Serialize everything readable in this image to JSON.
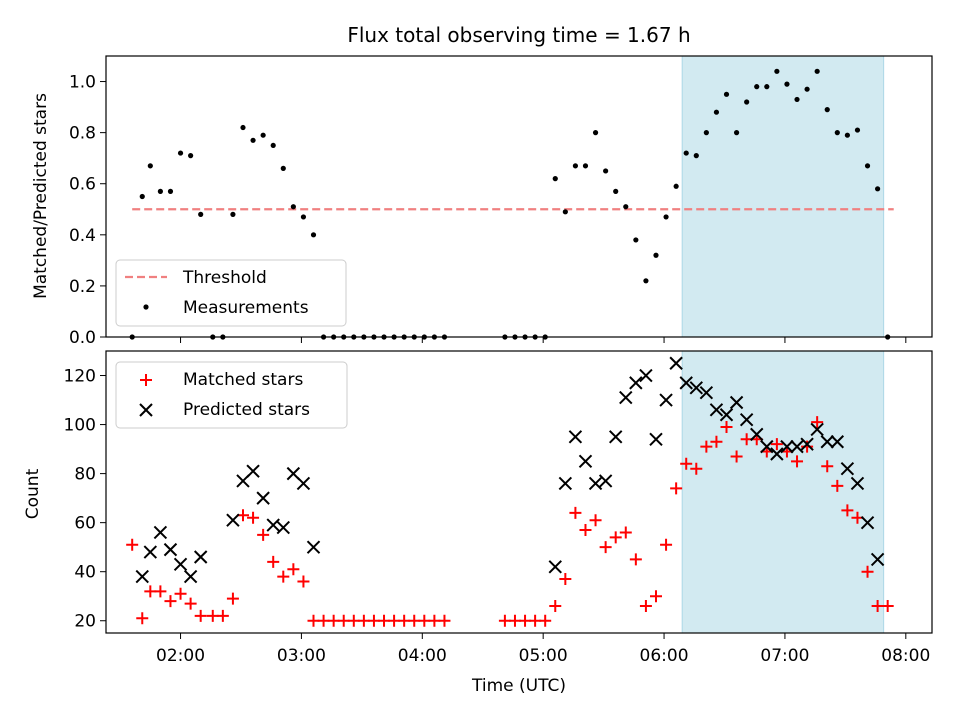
{
  "chart_data": [
    {
      "type": "scatter",
      "title": "Flux total observing time = 1.67 h",
      "xlabel": "",
      "ylabel": "Matched/Predicted stars",
      "ylim": [
        0,
        1.1
      ],
      "yticks": [
        "0.0",
        "0.2",
        "0.4",
        "0.6",
        "0.8",
        "1.0"
      ],
      "xlim": [
        "01:23",
        "08:13"
      ],
      "x_tick_values": [
        "02:00",
        "03:00",
        "04:00",
        "05:00",
        "06:00",
        "07:00",
        "08:00"
      ],
      "shaded_region": {
        "start": "06:09",
        "end": "07:49",
        "color": "#add8e6"
      },
      "legend_position": "lower-left",
      "threshold": {
        "name": "Threshold",
        "value": 0.5,
        "x_start": "01:36",
        "x_end": "07:54",
        "color": "#f08080",
        "style": "dashed"
      },
      "series": [
        {
          "name": "Measurements",
          "color": "#000000",
          "marker": "dot",
          "points": [
            [
              "01:36",
              0.0
            ],
            [
              "01:41",
              0.55
            ],
            [
              "01:45",
              0.67
            ],
            [
              "01:50",
              0.57
            ],
            [
              "01:55",
              0.57
            ],
            [
              "02:00",
              0.72
            ],
            [
              "02:05",
              0.71
            ],
            [
              "02:10",
              0.48
            ],
            [
              "02:16",
              0.0
            ],
            [
              "02:21",
              0.0
            ],
            [
              "02:26",
              0.48
            ],
            [
              "02:31",
              0.82
            ],
            [
              "02:36",
              0.77
            ],
            [
              "02:41",
              0.79
            ],
            [
              "02:46",
              0.75
            ],
            [
              "02:51",
              0.66
            ],
            [
              "02:56",
              0.51
            ],
            [
              "03:01",
              0.47
            ],
            [
              "03:06",
              0.4
            ],
            [
              "03:11",
              0.0
            ],
            [
              "03:16",
              0.0
            ],
            [
              "03:21",
              0.0
            ],
            [
              "03:26",
              0.0
            ],
            [
              "03:31",
              0.0
            ],
            [
              "03:36",
              0.0
            ],
            [
              "03:41",
              0.0
            ],
            [
              "03:46",
              0.0
            ],
            [
              "03:51",
              0.0
            ],
            [
              "03:56",
              0.0
            ],
            [
              "04:01",
              0.0
            ],
            [
              "04:06",
              0.0
            ],
            [
              "04:11",
              0.0
            ],
            [
              "04:41",
              0.0
            ],
            [
              "04:46",
              0.0
            ],
            [
              "04:51",
              0.0
            ],
            [
              "04:56",
              0.0
            ],
            [
              "05:01",
              0.0
            ],
            [
              "05:06",
              0.62
            ],
            [
              "05:11",
              0.49
            ],
            [
              "05:16",
              0.67
            ],
            [
              "05:21",
              0.67
            ],
            [
              "05:26",
              0.8
            ],
            [
              "05:31",
              0.65
            ],
            [
              "05:36",
              0.57
            ],
            [
              "05:41",
              0.51
            ],
            [
              "05:46",
              0.38
            ],
            [
              "05:51",
              0.22
            ],
            [
              "05:56",
              0.32
            ],
            [
              "06:01",
              0.47
            ],
            [
              "06:06",
              0.59
            ],
            [
              "06:11",
              0.72
            ],
            [
              "06:16",
              0.71
            ],
            [
              "06:21",
              0.8
            ],
            [
              "06:26",
              0.88
            ],
            [
              "06:31",
              0.95
            ],
            [
              "06:36",
              0.8
            ],
            [
              "06:41",
              0.92
            ],
            [
              "06:46",
              0.98
            ],
            [
              "06:51",
              0.98
            ],
            [
              "06:56",
              1.04
            ],
            [
              "07:01",
              0.99
            ],
            [
              "07:06",
              0.93
            ],
            [
              "07:11",
              0.97
            ],
            [
              "07:16",
              1.04
            ],
            [
              "07:21",
              0.89
            ],
            [
              "07:26",
              0.8
            ],
            [
              "07:31",
              0.79
            ],
            [
              "07:36",
              0.81
            ],
            [
              "07:41",
              0.67
            ],
            [
              "07:46",
              0.58
            ],
            [
              "07:51",
              0.0
            ]
          ]
        }
      ]
    },
    {
      "type": "scatter",
      "title": "",
      "xlabel": "Time (UTC)",
      "ylabel": "Count",
      "ylim": [
        15,
        130
      ],
      "yticks": [
        "20",
        "40",
        "60",
        "80",
        "100",
        "120"
      ],
      "xlim": [
        "01:23",
        "08:13"
      ],
      "x_tick_values": [
        "02:00",
        "03:00",
        "04:00",
        "05:00",
        "06:00",
        "07:00",
        "08:00"
      ],
      "x_tick_labels": [
        "02:00",
        "03:00",
        "04:00",
        "05:00",
        "06:00",
        "07:00",
        "08:00"
      ],
      "shaded_region": {
        "start": "06:09",
        "end": "07:49",
        "color": "#add8e6"
      },
      "legend_position": "top-left",
      "series": [
        {
          "name": "Matched stars",
          "color": "#ff0000",
          "marker": "plus",
          "points": [
            [
              "01:36",
              51
            ],
            [
              "01:41",
              21
            ],
            [
              "01:45",
              32
            ],
            [
              "01:50",
              32
            ],
            [
              "01:55",
              28
            ],
            [
              "02:00",
              31
            ],
            [
              "02:05",
              27
            ],
            [
              "02:10",
              22
            ],
            [
              "02:16",
              22
            ],
            [
              "02:21",
              22
            ],
            [
              "02:26",
              29
            ],
            [
              "02:31",
              63
            ],
            [
              "02:36",
              62
            ],
            [
              "02:41",
              55
            ],
            [
              "02:46",
              44
            ],
            [
              "02:51",
              38
            ],
            [
              "02:56",
              41
            ],
            [
              "03:01",
              36
            ],
            [
              "03:06",
              20
            ],
            [
              "03:11",
              20
            ],
            [
              "03:16",
              20
            ],
            [
              "03:21",
              20
            ],
            [
              "03:26",
              20
            ],
            [
              "03:31",
              20
            ],
            [
              "03:36",
              20
            ],
            [
              "03:41",
              20
            ],
            [
              "03:46",
              20
            ],
            [
              "03:51",
              20
            ],
            [
              "03:56",
              20
            ],
            [
              "04:01",
              20
            ],
            [
              "04:06",
              20
            ],
            [
              "04:11",
              20
            ],
            [
              "04:41",
              20
            ],
            [
              "04:46",
              20
            ],
            [
              "04:51",
              20
            ],
            [
              "04:56",
              20
            ],
            [
              "05:01",
              20
            ],
            [
              "05:06",
              26
            ],
            [
              "05:11",
              37
            ],
            [
              "05:16",
              64
            ],
            [
              "05:21",
              57
            ],
            [
              "05:26",
              61
            ],
            [
              "05:31",
              50
            ],
            [
              "05:36",
              54
            ],
            [
              "05:41",
              56
            ],
            [
              "05:46",
              45
            ],
            [
              "05:51",
              26
            ],
            [
              "05:56",
              30
            ],
            [
              "06:01",
              51
            ],
            [
              "06:06",
              74
            ],
            [
              "06:11",
              84
            ],
            [
              "06:16",
              82
            ],
            [
              "06:21",
              91
            ],
            [
              "06:26",
              93
            ],
            [
              "06:31",
              99
            ],
            [
              "06:36",
              87
            ],
            [
              "06:41",
              94
            ],
            [
              "06:46",
              94
            ],
            [
              "06:51",
              89
            ],
            [
              "06:56",
              92
            ],
            [
              "07:01",
              89
            ],
            [
              "07:06",
              85
            ],
            [
              "07:11",
              91
            ],
            [
              "07:16",
              101
            ],
            [
              "07:21",
              83
            ],
            [
              "07:26",
              75
            ],
            [
              "07:31",
              65
            ],
            [
              "07:36",
              62
            ],
            [
              "07:41",
              40
            ],
            [
              "07:46",
              26
            ],
            [
              "07:51",
              26
            ]
          ]
        },
        {
          "name": "Predicted stars",
          "color": "#000000",
          "marker": "x",
          "points": [
            [
              "01:41",
              38
            ],
            [
              "01:45",
              48
            ],
            [
              "01:50",
              56
            ],
            [
              "01:55",
              49
            ],
            [
              "02:00",
              43
            ],
            [
              "02:05",
              38
            ],
            [
              "02:10",
              46
            ],
            [
              "02:26",
              61
            ],
            [
              "02:31",
              77
            ],
            [
              "02:36",
              81
            ],
            [
              "02:41",
              70
            ],
            [
              "02:46",
              59
            ],
            [
              "02:51",
              58
            ],
            [
              "02:56",
              80
            ],
            [
              "03:01",
              76
            ],
            [
              "03:06",
              50
            ],
            [
              "05:06",
              42
            ],
            [
              "05:11",
              76
            ],
            [
              "05:16",
              95
            ],
            [
              "05:21",
              85
            ],
            [
              "05:26",
              76
            ],
            [
              "05:31",
              77
            ],
            [
              "05:36",
              95
            ],
            [
              "05:41",
              111
            ],
            [
              "05:46",
              117
            ],
            [
              "05:51",
              120
            ],
            [
              "05:56",
              94
            ],
            [
              "06:01",
              110
            ],
            [
              "06:06",
              125
            ],
            [
              "06:11",
              117
            ],
            [
              "06:16",
              115
            ],
            [
              "06:21",
              113
            ],
            [
              "06:26",
              106
            ],
            [
              "06:31",
              104
            ],
            [
              "06:36",
              109
            ],
            [
              "06:41",
              102
            ],
            [
              "06:46",
              96
            ],
            [
              "06:51",
              91
            ],
            [
              "06:56",
              88
            ],
            [
              "07:01",
              91
            ],
            [
              "07:06",
              91
            ],
            [
              "07:11",
              92
            ],
            [
              "07:16",
              98
            ],
            [
              "07:21",
              93
            ],
            [
              "07:26",
              93
            ],
            [
              "07:31",
              82
            ],
            [
              "07:36",
              76
            ],
            [
              "07:41",
              60
            ],
            [
              "07:46",
              45
            ]
          ]
        }
      ]
    }
  ]
}
